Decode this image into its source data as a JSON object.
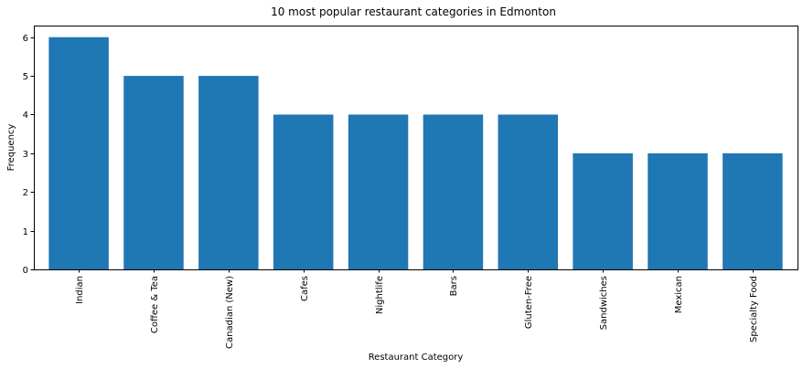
{
  "chart_data": {
    "type": "bar",
    "title": "10 most popular restaurant categories in Edmonton",
    "xlabel": "Restaurant Category",
    "ylabel": "Frequency",
    "categories": [
      "Indian",
      "Coffee & Tea",
      "Canadian (New)",
      "Cafes",
      "Nightlife",
      "Bars",
      "Gluten-Free",
      "Sandwiches",
      "Mexican",
      "Specialty Food"
    ],
    "values": [
      6,
      5,
      5,
      4,
      4,
      4,
      4,
      3,
      3,
      3
    ],
    "ylim": [
      0,
      6.3
    ],
    "yticks": [
      0,
      1,
      2,
      3,
      4,
      5,
      6
    ],
    "bar_color": "#1f77b4",
    "grid": false,
    "legend": "none"
  }
}
